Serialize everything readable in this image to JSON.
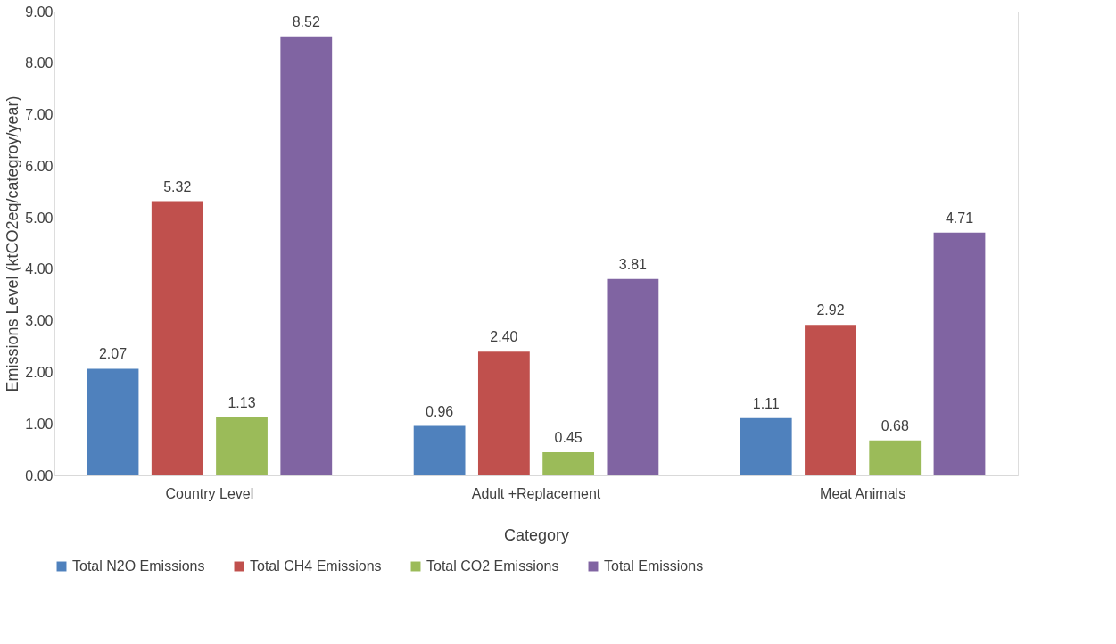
{
  "chart_data": {
    "type": "bar",
    "xlabel": "Category",
    "ylabel": "Emissions Level (ktCO2eq/categroy/year)",
    "categories": [
      "Country Level",
      "Adult +Replacement",
      "Meat Animals"
    ],
    "series": [
      {
        "name": "Total N2O Emissions",
        "color": "#4f81bd",
        "values": [
          2.07,
          0.96,
          1.11
        ],
        "value_labels": [
          "2.07",
          "0.96",
          "1.11"
        ]
      },
      {
        "name": "Total CH4 Emissions",
        "color": "#c0504d",
        "values": [
          5.32,
          2.4,
          2.92
        ],
        "value_labels": [
          "5.32",
          "2.40",
          "2.92"
        ]
      },
      {
        "name": "Total CO2 Emissions",
        "color": "#9bbb59",
        "values": [
          1.13,
          0.45,
          0.68
        ],
        "value_labels": [
          "1.13",
          "0.45",
          "0.68"
        ]
      },
      {
        "name": "Total Emissions",
        "color": "#8064a2",
        "values": [
          8.52,
          3.81,
          4.71
        ],
        "value_labels": [
          "8.52",
          "3.81",
          "4.71"
        ]
      }
    ],
    "ylim": [
      0,
      9
    ],
    "yticks": [
      {
        "value": 0,
        "label": "0.00"
      },
      {
        "value": 1,
        "label": "1.00"
      },
      {
        "value": 2,
        "label": "2.00"
      },
      {
        "value": 3,
        "label": "3.00"
      },
      {
        "value": 4,
        "label": "4.00"
      },
      {
        "value": 5,
        "label": "5.00"
      },
      {
        "value": 6,
        "label": "6.00"
      },
      {
        "value": 7,
        "label": "7.00"
      },
      {
        "value": 8,
        "label": "8.00"
      },
      {
        "value": 9,
        "label": "9.00"
      }
    ],
    "grid": false,
    "legend": "bottom"
  }
}
